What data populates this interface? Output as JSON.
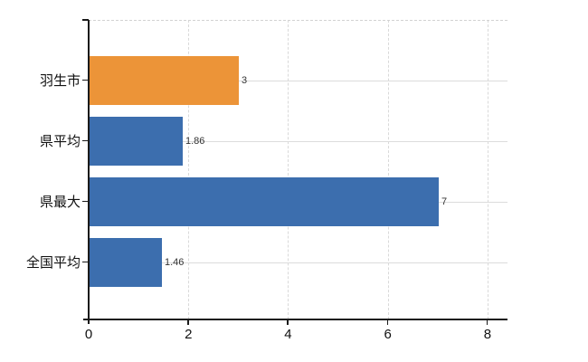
{
  "chart_data": {
    "type": "bar",
    "orientation": "horizontal",
    "title": "",
    "xlabel": "",
    "ylabel": "",
    "categories": [
      "羽生市",
      "県平均",
      "県最大",
      "全国平均"
    ],
    "values": [
      3,
      1.86,
      7,
      1.46
    ],
    "value_labels": [
      "3",
      "1.86",
      "7",
      "1.46"
    ],
    "bar_colors": [
      "#EC9438",
      "#3C6EAE",
      "#3C6EAE",
      "#3C6EAE"
    ],
    "x_ticks": [
      0,
      2,
      4,
      6,
      8
    ],
    "x_tick_labels": [
      "0",
      "2",
      "4",
      "6",
      "8"
    ],
    "xlim": [
      0,
      8.4
    ],
    "grid": true,
    "legend": false
  },
  "colors": {
    "bar_orange": "#EC9438",
    "bar_blue": "#3C6EAE",
    "gridline": "#DCDCDC",
    "top_border_dashed": "#D2D2D2",
    "axis": "#1A1A1A",
    "category_label": "#111111",
    "value_label": "#333333",
    "background": "#FFFFFF"
  }
}
